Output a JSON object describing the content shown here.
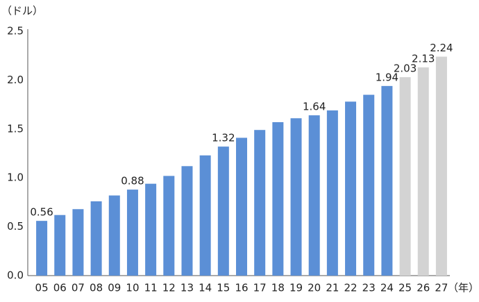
{
  "chart_data": {
    "type": "bar",
    "y_unit": "（ドル）",
    "x_unit": "（年）",
    "categories": [
      "05",
      "06",
      "07",
      "08",
      "09",
      "10",
      "11",
      "12",
      "13",
      "14",
      "15",
      "16",
      "17",
      "18",
      "19",
      "20",
      "21",
      "22",
      "23",
      "24",
      "25",
      "26",
      "27"
    ],
    "values": [
      0.56,
      0.62,
      0.68,
      0.76,
      0.82,
      0.88,
      0.94,
      1.02,
      1.12,
      1.23,
      1.32,
      1.41,
      1.49,
      1.57,
      1.61,
      1.64,
      1.69,
      1.78,
      1.85,
      1.94,
      2.03,
      2.13,
      2.24
    ],
    "value_labels": [
      "0.56",
      null,
      null,
      null,
      null,
      "0.88",
      null,
      null,
      null,
      null,
      "1.32",
      null,
      null,
      null,
      null,
      "1.64",
      null,
      null,
      null,
      "1.94",
      "2.03",
      "2.13",
      "2.24"
    ],
    "colors": [
      "#5b8fd6",
      "#5b8fd6",
      "#5b8fd6",
      "#5b8fd6",
      "#5b8fd6",
      "#5b8fd6",
      "#5b8fd6",
      "#5b8fd6",
      "#5b8fd6",
      "#5b8fd6",
      "#5b8fd6",
      "#5b8fd6",
      "#5b8fd6",
      "#5b8fd6",
      "#5b8fd6",
      "#5b8fd6",
      "#5b8fd6",
      "#5b8fd6",
      "#5b8fd6",
      "#5b8fd6",
      "#d3d3d3",
      "#d3d3d3",
      "#d3d3d3"
    ],
    "ylim": [
      0,
      2.5
    ],
    "yticks": [
      {
        "value": 0,
        "label": "0.0"
      },
      0.5,
      {
        "value": 1,
        "label": "1.0"
      },
      1.5,
      {
        "value": 2,
        "label": "2.0"
      },
      2.5
    ],
    "grid": false
  }
}
